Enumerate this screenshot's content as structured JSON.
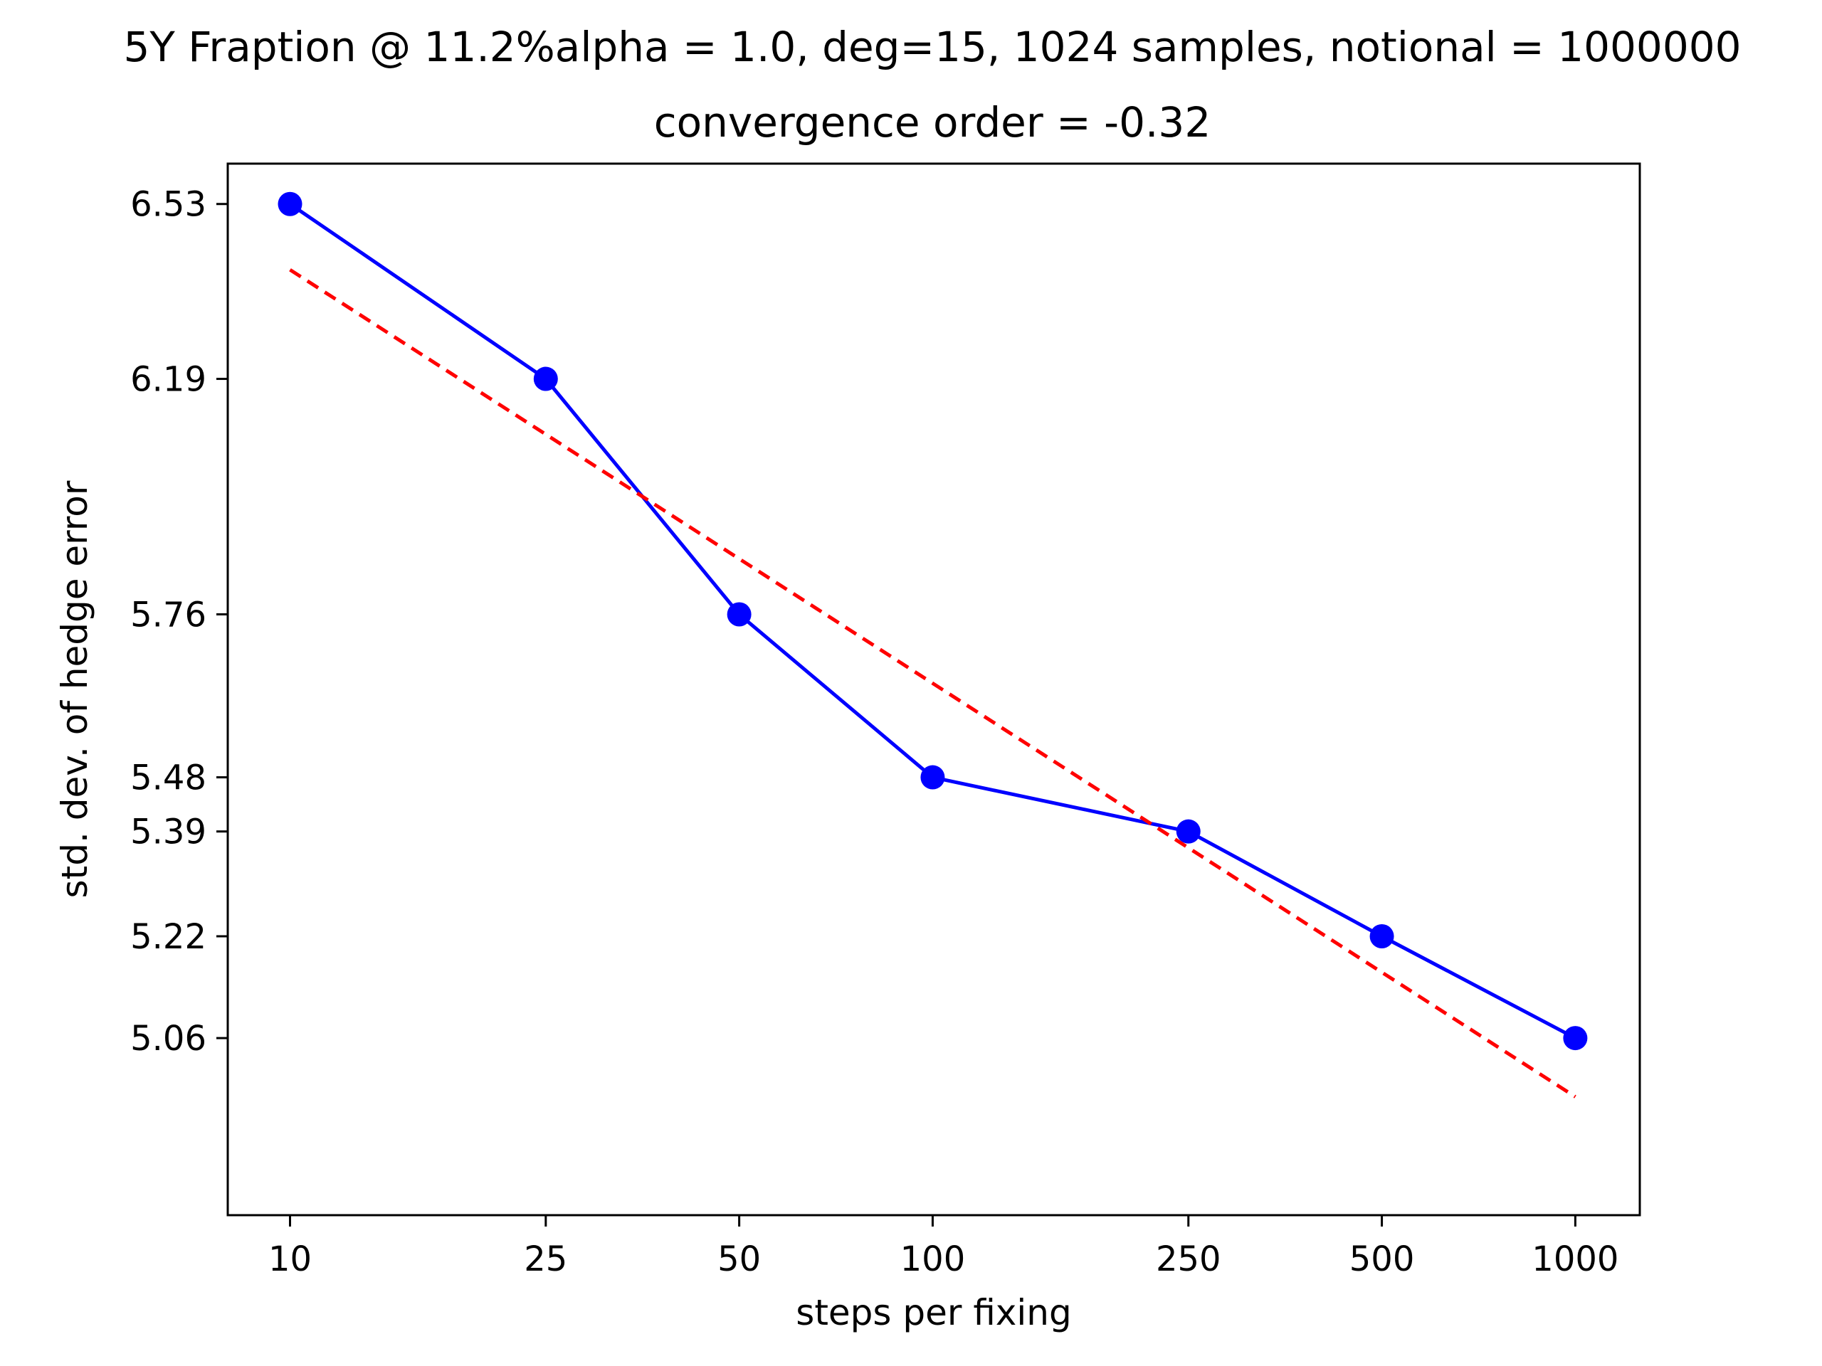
{
  "chart_data": {
    "type": "line",
    "title": "5Y Fraption @ 11.2%alpha = 1.0, deg=15, 1024 samples, notional = 1000000",
    "subtitle": "convergence order = -0.32",
    "xlabel": "steps per fixing",
    "ylabel": "std. dev. of hedge error",
    "x_scale": "log",
    "y_scale": "log",
    "x": [
      10,
      25,
      50,
      100,
      250,
      500,
      1000
    ],
    "x_tick_labels": [
      "10",
      "25",
      "50",
      "100",
      "250",
      "500",
      "1000"
    ],
    "y_tick_values": [
      5.06,
      5.22,
      5.39,
      5.48,
      5.76,
      6.19,
      6.53
    ],
    "y_tick_labels": [
      "5.06",
      "5.22",
      "5.39",
      "5.48",
      "5.76",
      "6.19",
      "6.53"
    ],
    "xlim": [
      8.0,
      1260
    ],
    "ylim": [
      4.7933,
      6.6111
    ],
    "grid": false,
    "series": [
      {
        "values": [
          6.53,
          6.19,
          5.76,
          5.48,
          5.39,
          5.22,
          5.06
        ],
        "color": "#0000ff",
        "style": "solid",
        "marker": "circle"
      },
      {
        "x": [
          10,
          1000
        ],
        "values": [
          6.4,
          4.97
        ],
        "color": "#ff0000",
        "style": "dashed",
        "marker": "none"
      }
    ]
  }
}
